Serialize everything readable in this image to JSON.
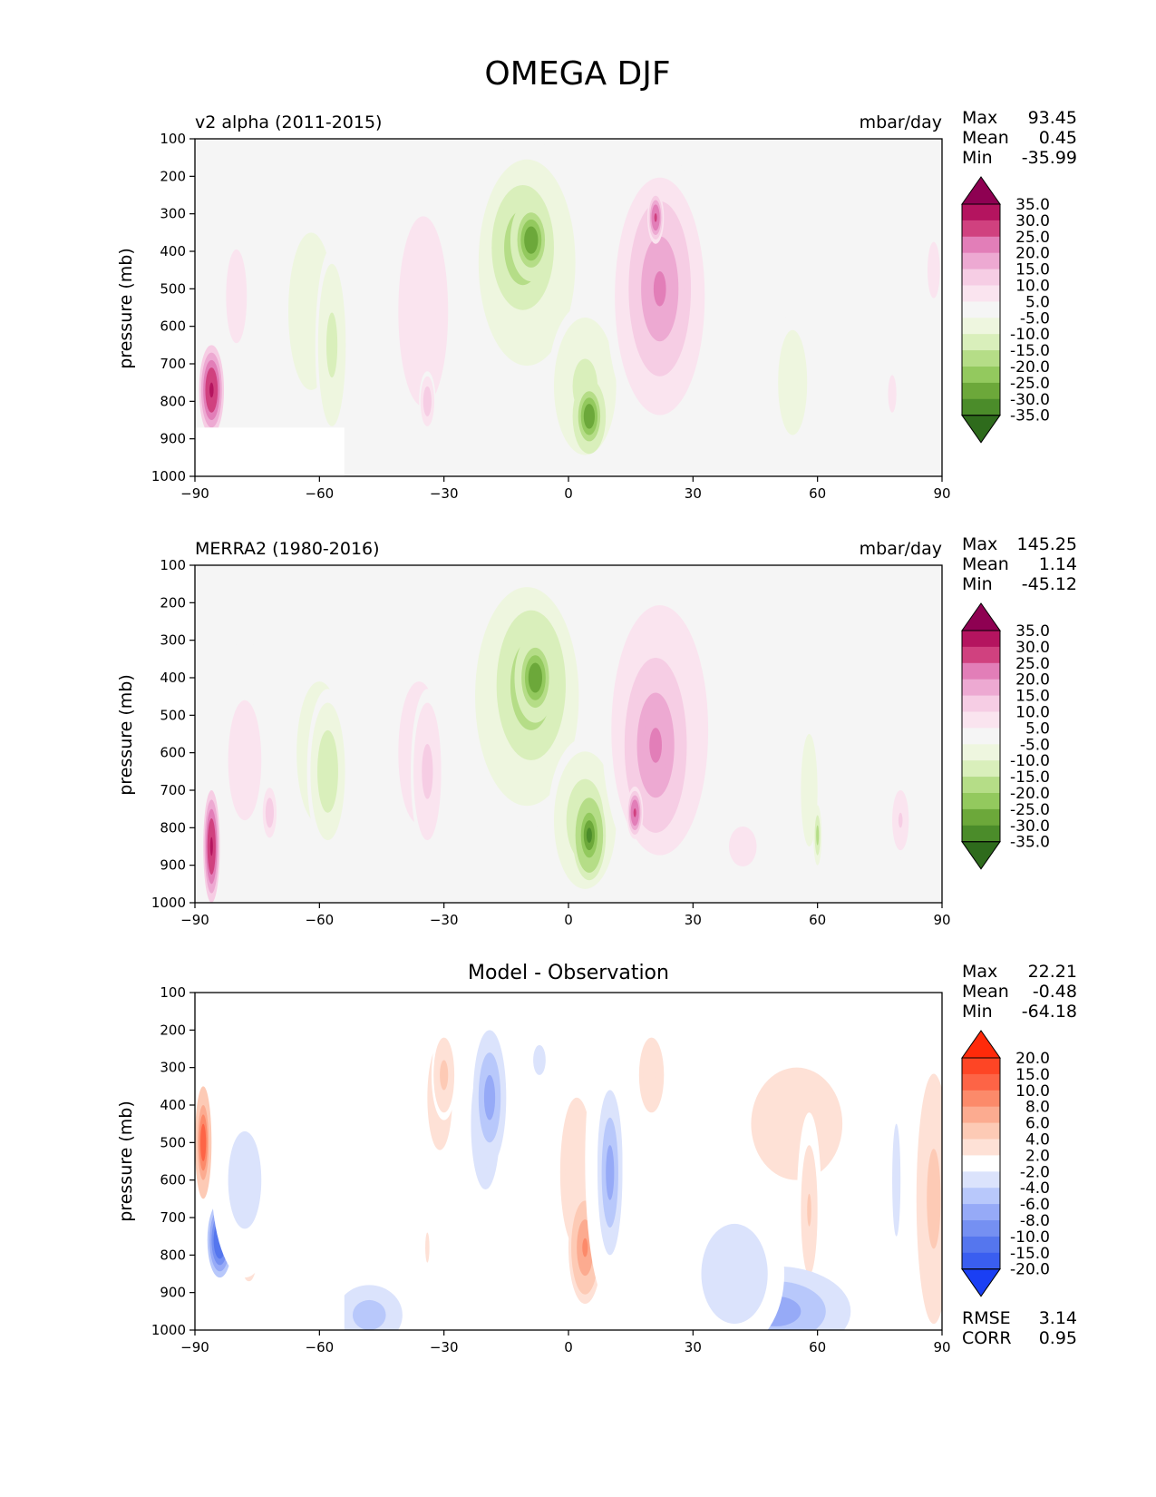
{
  "figure_title": "OMEGA DJF",
  "chart_data": [
    {
      "type": "heatmap",
      "title_left": "v2 alpha (2011-2015)",
      "title_right": "mbar/day",
      "ylabel": "pressure (mb)",
      "xlim": [
        -90,
        90
      ],
      "ylim": [
        1000,
        100
      ],
      "x_ticks": [
        "−90",
        "−60",
        "−30",
        "0",
        "30",
        "60",
        "90"
      ],
      "y_ticks": [
        "100",
        "200",
        "300",
        "400",
        "500",
        "600",
        "700",
        "800",
        "900",
        "1000"
      ],
      "stats": [
        {
          "label": "Max",
          "value": "93.45"
        },
        {
          "label": "Mean",
          "value": "0.45"
        },
        {
          "label": "Min",
          "value": "-35.99"
        }
      ],
      "colorbar": {
        "labels": [
          "35.0",
          "30.0",
          "25.0",
          "20.0",
          "15.0",
          "10.0",
          "5.0",
          "-5.0",
          "-10.0",
          "-15.0",
          "-20.0",
          "-25.0",
          "-30.0",
          "-35.0"
        ],
        "colors": [
          "#8e0152",
          "#b4145f",
          "#d0417f",
          "#e27eb8",
          "#eda9d2",
          "#f6cde4",
          "#fae4ef",
          "#f5f5f5",
          "#eef6df",
          "#d9efbb",
          "#b5dd87",
          "#93c95e",
          "#6ca83a",
          "#4b8c2a",
          "#2e6b1c",
          "#276419"
        ]
      },
      "blobs": [
        {
          "lat": -10,
          "p": 430,
          "rx": 14,
          "rp": 330,
          "v": -12
        },
        {
          "lat": -11,
          "p": 390,
          "rx": 9,
          "rp": 200,
          "v": -22
        },
        {
          "lat": -9,
          "p": 370,
          "rx": 5,
          "rp": 110,
          "v": -30
        },
        {
          "lat": 4,
          "p": 760,
          "rx": 9,
          "rp": 220,
          "v": -12
        },
        {
          "lat": 5,
          "p": 840,
          "rx": 4,
          "rp": 100,
          "v": -30
        },
        {
          "lat": 22,
          "p": 520,
          "rx": 13,
          "rp": 380,
          "v": 14
        },
        {
          "lat": 22,
          "p": 500,
          "rx": 9,
          "rp": 280,
          "v": 22
        },
        {
          "lat": 21,
          "p": 310,
          "rx": 2,
          "rp": 70,
          "v": 28
        },
        {
          "lat": -35,
          "p": 560,
          "rx": 9,
          "rp": 380,
          "v": 9
        },
        {
          "lat": -34,
          "p": 800,
          "rx": 2,
          "rp": 80,
          "v": 14
        },
        {
          "lat": -62,
          "p": 560,
          "rx": 11,
          "rp": 420,
          "v": -8
        },
        {
          "lat": -57,
          "p": 650,
          "rx": 4,
          "rp": 260,
          "v": -12
        },
        {
          "lat": -80,
          "p": 520,
          "rx": 5,
          "rp": 250,
          "v": 7
        },
        {
          "lat": -86,
          "p": 770,
          "rx": 3,
          "rp": 120,
          "v": 34
        },
        {
          "lat": 54,
          "p": 750,
          "rx": 7,
          "rp": 280,
          "v": -7
        },
        {
          "lat": 78,
          "p": 780,
          "rx": 2,
          "rp": 100,
          "v": 7
        },
        {
          "lat": 88,
          "p": 450,
          "rx": 3,
          "rp": 150,
          "v": 7
        }
      ],
      "mask": {
        "lat_end": -54,
        "p_start": 870
      }
    },
    {
      "type": "heatmap",
      "title_left": "MERRA2 (1980-2016)",
      "title_right": "mbar/day",
      "ylabel": "pressure (mb)",
      "xlim": [
        -90,
        90
      ],
      "ylim": [
        1000,
        100
      ],
      "x_ticks": [
        "−90",
        "−60",
        "−30",
        "0",
        "30",
        "60",
        "90"
      ],
      "y_ticks": [
        "100",
        "200",
        "300",
        "400",
        "500",
        "600",
        "700",
        "800",
        "900",
        "1000"
      ],
      "stats": [
        {
          "label": "Max",
          "value": "145.25"
        },
        {
          "label": "Mean",
          "value": "1.14"
        },
        {
          "label": "Min",
          "value": "-45.12"
        }
      ],
      "colorbar": {
        "labels": [
          "35.0",
          "30.0",
          "25.0",
          "20.0",
          "15.0",
          "10.0",
          "5.0",
          "-5.0",
          "-10.0",
          "-15.0",
          "-20.0",
          "-25.0",
          "-30.0",
          "-35.0"
        ],
        "colors": [
          "#8e0152",
          "#b4145f",
          "#d0417f",
          "#e27eb8",
          "#eda9d2",
          "#f6cde4",
          "#fae4ef",
          "#f5f5f5",
          "#eef6df",
          "#d9efbb",
          "#b5dd87",
          "#93c95e",
          "#6ca83a",
          "#4b8c2a",
          "#2e6b1c",
          "#276419"
        ]
      },
      "blobs": [
        {
          "lat": -10,
          "p": 450,
          "rx": 15,
          "rp": 350,
          "v": -12
        },
        {
          "lat": -9,
          "p": 420,
          "rx": 10,
          "rp": 240,
          "v": -22
        },
        {
          "lat": -8,
          "p": 400,
          "rx": 5,
          "rp": 120,
          "v": -30
        },
        {
          "lat": 4,
          "p": 780,
          "rx": 9,
          "rp": 220,
          "v": -14
        },
        {
          "lat": 5,
          "p": 820,
          "rx": 4,
          "rp": 120,
          "v": -32
        },
        {
          "lat": 22,
          "p": 540,
          "rx": 14,
          "rp": 400,
          "v": 14
        },
        {
          "lat": 21,
          "p": 580,
          "rx": 9,
          "rp": 280,
          "v": 22
        },
        {
          "lat": 16,
          "p": 760,
          "rx": 2,
          "rp": 70,
          "v": 28
        },
        {
          "lat": -36,
          "p": 600,
          "rx": 10,
          "rp": 380,
          "v": 8
        },
        {
          "lat": -34,
          "p": 650,
          "rx": 4,
          "rp": 220,
          "v": 12
        },
        {
          "lat": -60,
          "p": 600,
          "rx": 11,
          "rp": 380,
          "v": -8
        },
        {
          "lat": -58,
          "p": 650,
          "rx": 5,
          "rp": 220,
          "v": -14
        },
        {
          "lat": -78,
          "p": 620,
          "rx": 8,
          "rp": 320,
          "v": 8
        },
        {
          "lat": -86,
          "p": 850,
          "rx": 2,
          "rp": 150,
          "v": 34
        },
        {
          "lat": -72,
          "p": 760,
          "rx": 2,
          "rp": 80,
          "v": 14
        },
        {
          "lat": 58,
          "p": 700,
          "rx": 4,
          "rp": 300,
          "v": -7
        },
        {
          "lat": 60,
          "p": 820,
          "rx": 1,
          "rp": 80,
          "v": -18
        },
        {
          "lat": 80,
          "p": 780,
          "rx": 3,
          "rp": 120,
          "v": 10
        },
        {
          "lat": 42,
          "p": 850,
          "rx": 10,
          "rp": 160,
          "v": 6
        }
      ],
      "mask": null
    },
    {
      "type": "heatmap",
      "title_center": "Model - Observation",
      "ylabel": "pressure (mb)",
      "xlim": [
        -90,
        90
      ],
      "ylim": [
        1000,
        100
      ],
      "x_ticks": [
        "−90",
        "−60",
        "−30",
        "0",
        "30",
        "60",
        "90"
      ],
      "y_ticks": [
        "100",
        "200",
        "300",
        "400",
        "500",
        "600",
        "700",
        "800",
        "900",
        "1000"
      ],
      "stats": [
        {
          "label": "Max",
          "value": "22.21"
        },
        {
          "label": "Mean",
          "value": "-0.48"
        },
        {
          "label": "Min",
          "value": "-64.18"
        }
      ],
      "metrics": [
        {
          "label": "RMSE",
          "value": "3.14"
        },
        {
          "label": "CORR",
          "value": "0.95"
        }
      ],
      "colorbar": {
        "labels": [
          "20.0",
          "15.0",
          "10.0",
          "8.0",
          "6.0",
          "4.0",
          "2.0",
          "-2.0",
          "-4.0",
          "-6.0",
          "-8.0",
          "-10.0",
          "-15.0",
          "-20.0"
        ],
        "colors": [
          "#ff2a0a",
          "#fe4525",
          "#fd6446",
          "#fc8a6a",
          "#fcab90",
          "#fdcab5",
          "#fee1d6",
          "#ffffff",
          "#dbe3fc",
          "#b8c8fb",
          "#96aaf7",
          "#7590f2",
          "#5576ee",
          "#3a5ef0",
          "#1a3ff4",
          "#0b2ff7"
        ]
      },
      "blobs": [
        {
          "lat": -31,
          "p": 380,
          "rx": 6,
          "rp": 280,
          "v": 3
        },
        {
          "lat": -30,
          "p": 320,
          "rx": 3,
          "rp": 120,
          "v": 5
        },
        {
          "lat": -20,
          "p": 450,
          "rx": 7,
          "rp": 350,
          "v": -3
        },
        {
          "lat": -19,
          "p": 380,
          "rx": 4,
          "rp": 180,
          "v": -7
        },
        {
          "lat": -7,
          "p": 280,
          "rx": 3,
          "rp": 80,
          "v": -3
        },
        {
          "lat": 2,
          "p": 580,
          "rx": 8,
          "rp": 400,
          "v": 3
        },
        {
          "lat": 4,
          "p": 780,
          "rx": 4,
          "rp": 150,
          "v": 9
        },
        {
          "lat": 10,
          "p": 550,
          "rx": 6,
          "rp": 380,
          "v": -3
        },
        {
          "lat": 10,
          "p": 580,
          "rx": 3,
          "rp": 220,
          "v": -7
        },
        {
          "lat": 20,
          "p": 320,
          "rx": 6,
          "rp": 200,
          "v": 3
        },
        {
          "lat": 55,
          "p": 450,
          "rx": 22,
          "rp": 300,
          "v": 3
        },
        {
          "lat": 58,
          "p": 680,
          "rx": 3,
          "rp": 260,
          "v": 4
        },
        {
          "lat": 50,
          "p": 950,
          "rx": 18,
          "rp": 120,
          "v": -7
        },
        {
          "lat": 40,
          "p": 850,
          "rx": 12,
          "rp": 200,
          "v": -4
        },
        {
          "lat": 88,
          "p": 650,
          "rx": 5,
          "rp": 400,
          "v": 5
        },
        {
          "lat": 79,
          "p": 600,
          "rx": 2,
          "rp": 300,
          "v": -3
        },
        {
          "lat": -88,
          "p": 500,
          "rx": 2,
          "rp": 150,
          "v": 12
        },
        {
          "lat": -84,
          "p": 760,
          "rx": 3,
          "rp": 100,
          "v": -15
        },
        {
          "lat": -77,
          "p": 800,
          "rx": 2,
          "rp": 70,
          "v": 8
        },
        {
          "lat": -78,
          "p": 600,
          "rx": 8,
          "rp": 260,
          "v": -3
        },
        {
          "lat": -48,
          "p": 960,
          "rx": 8,
          "rp": 80,
          "v": -6
        },
        {
          "lat": -34,
          "p": 780,
          "rx": 1,
          "rp": 80,
          "v": 3
        }
      ],
      "mask": {
        "lat_end": -54,
        "p_start": 870
      }
    }
  ]
}
